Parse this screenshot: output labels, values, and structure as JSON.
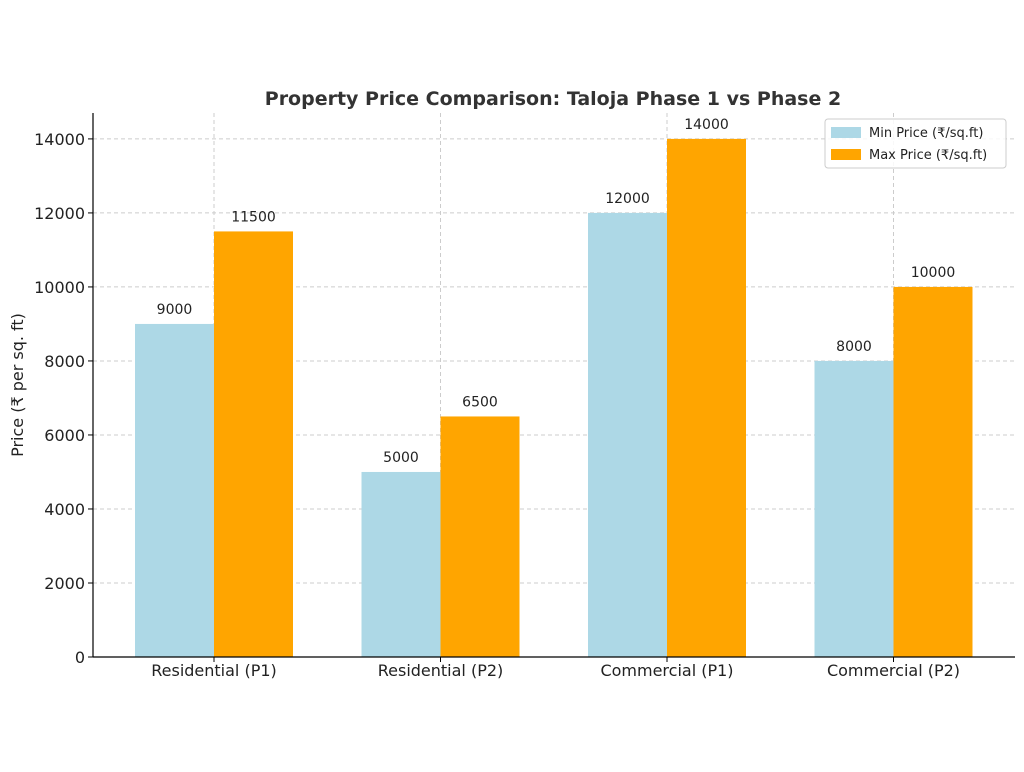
{
  "chart_data": {
    "type": "bar",
    "title": "Property Price Comparison: Taloja Phase 1 vs Phase 2",
    "xlabel": "",
    "ylabel": "Price (₹ per sq. ft)",
    "categories": [
      "Residential (P1)",
      "Residential (P2)",
      "Commercial (P1)",
      "Commercial (P2)"
    ],
    "series": [
      {
        "name": "Min Price (₹/sq.ft)",
        "values": [
          9000,
          5000,
          12000,
          8000
        ],
        "color": "#add8e6"
      },
      {
        "name": "Max Price (₹/sq.ft)",
        "values": [
          11500,
          6500,
          14000,
          10000
        ],
        "color": "#ffa500"
      }
    ],
    "ylim": [
      0,
      14700
    ],
    "yticks": [
      0,
      2000,
      4000,
      6000,
      8000,
      10000,
      12000,
      14000
    ],
    "grid": true,
    "legend": "top-right",
    "data_labels": true
  }
}
